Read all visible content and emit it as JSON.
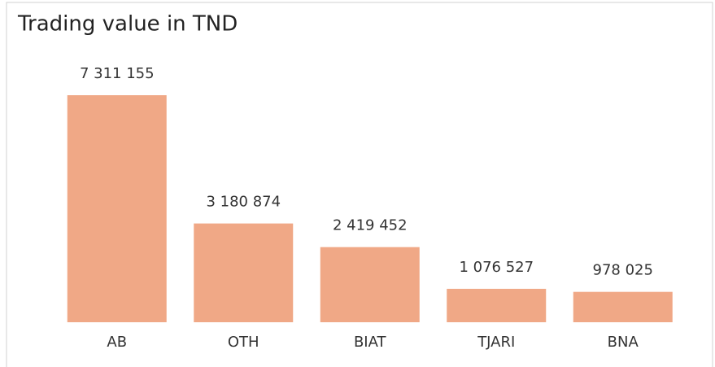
{
  "chart_data": {
    "type": "bar",
    "title": "Trading value in TND",
    "categories": [
      "AB",
      "OTH",
      "BIAT",
      "TJARI",
      "BNA"
    ],
    "values": [
      7311155,
      3180874,
      2419452,
      1076527,
      978025
    ],
    "value_labels": [
      "7 311 155",
      "3 180 874",
      "2 419 452",
      "1 076 527",
      "978 025"
    ],
    "color": "#f0a886"
  }
}
